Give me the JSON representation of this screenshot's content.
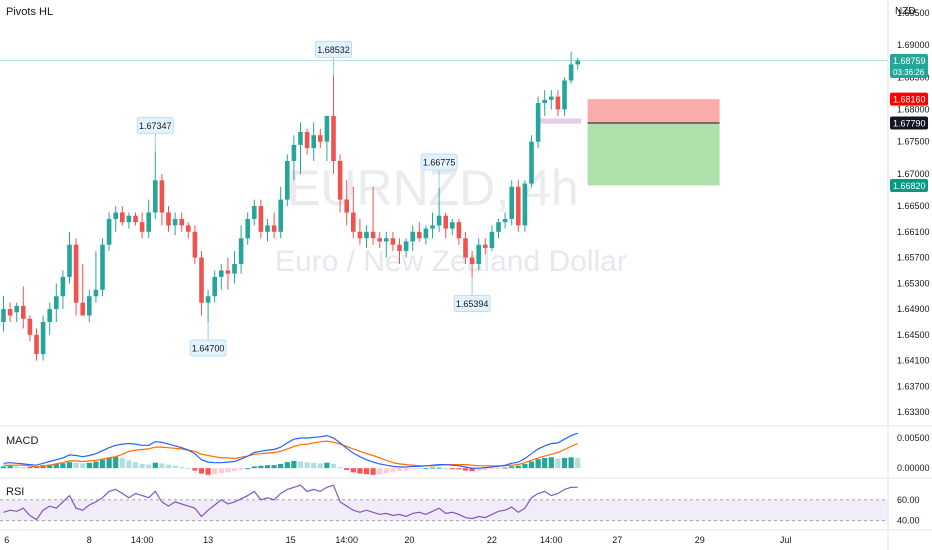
{
  "indicator_title": "Pivots HL",
  "currency": "NZD",
  "watermark": {
    "symbol": "EURNZD, 4h",
    "name": "Euro / New Zealand Dollar"
  },
  "price_tags": {
    "last": "1.68759",
    "countdown": "03:36:26",
    "stop": "1.68160",
    "entry": "1.67790",
    "target": "1.66820"
  },
  "colors": {
    "up": "#26a69a",
    "down": "#ef5350",
    "stop_zone": "#f9a3a3",
    "target_zone": "#a5dda0",
    "pivot_label_bg": "#e3f2fd",
    "macd_line": "#2962ff",
    "signal_line": "#ff6d00",
    "rsi_line": "#7e57c2",
    "rsi_band": "#ede7f6"
  },
  "chart_data": {
    "type": "candlestick",
    "y_axis": {
      "min": 1.631,
      "max": 1.697,
      "ticks": [
        "1.69500",
        "1.69000",
        "1.68500",
        "1.68000",
        "1.67500",
        "1.67000",
        "1.66500",
        "1.66100",
        "1.65700",
        "1.65300",
        "1.64900",
        "1.64500",
        "1.64100",
        "1.63700",
        "1.63300"
      ]
    },
    "x_axis": {
      "ticks": [
        {
          "label": "6",
          "i": 0.5
        },
        {
          "label": "8",
          "i": 13
        },
        {
          "label": "14:00",
          "i": 21
        },
        {
          "label": "13",
          "i": 31
        },
        {
          "label": "15",
          "i": 43.5
        },
        {
          "label": "14:00",
          "i": 52
        },
        {
          "label": "20",
          "i": 61.5
        },
        {
          "label": "22",
          "i": 74
        },
        {
          "label": "14:00",
          "i": 83
        },
        {
          "label": "27",
          "i": 93
        },
        {
          "label": "29",
          "i": 105.5
        },
        {
          "label": "Jul",
          "i": 118.5
        }
      ]
    },
    "candles": [
      {
        "o": 1.647,
        "h": 1.651,
        "l": 1.6455,
        "c": 1.649
      },
      {
        "o": 1.649,
        "h": 1.65,
        "l": 1.647,
        "c": 1.648
      },
      {
        "o": 1.6485,
        "h": 1.65,
        "l": 1.647,
        "c": 1.6495
      },
      {
        "o": 1.6495,
        "h": 1.6525,
        "l": 1.646,
        "c": 1.6475
      },
      {
        "o": 1.6475,
        "h": 1.648,
        "l": 1.644,
        "c": 1.645
      },
      {
        "o": 1.645,
        "h": 1.646,
        "l": 1.641,
        "c": 1.642
      },
      {
        "o": 1.642,
        "h": 1.648,
        "l": 1.641,
        "c": 1.647
      },
      {
        "o": 1.647,
        "h": 1.65,
        "l": 1.645,
        "c": 1.649
      },
      {
        "o": 1.649,
        "h": 1.653,
        "l": 1.647,
        "c": 1.651
      },
      {
        "o": 1.651,
        "h": 1.655,
        "l": 1.649,
        "c": 1.654
      },
      {
        "o": 1.654,
        "h": 1.661,
        "l": 1.653,
        "c": 1.659
      },
      {
        "o": 1.659,
        "h": 1.66,
        "l": 1.648,
        "c": 1.65
      },
      {
        "o": 1.65,
        "h": 1.656,
        "l": 1.648,
        "c": 1.648
      },
      {
        "o": 1.648,
        "h": 1.652,
        "l": 1.647,
        "c": 1.651
      },
      {
        "o": 1.651,
        "h": 1.658,
        "l": 1.65,
        "c": 1.652
      },
      {
        "o": 1.652,
        "h": 1.66,
        "l": 1.651,
        "c": 1.659
      },
      {
        "o": 1.659,
        "h": 1.664,
        "l": 1.658,
        "c": 1.663
      },
      {
        "o": 1.663,
        "h": 1.665,
        "l": 1.661,
        "c": 1.664
      },
      {
        "o": 1.664,
        "h": 1.665,
        "l": 1.662,
        "c": 1.6625
      },
      {
        "o": 1.6625,
        "h": 1.664,
        "l": 1.6615,
        "c": 1.6635
      },
      {
        "o": 1.6635,
        "h": 1.664,
        "l": 1.662,
        "c": 1.6625
      },
      {
        "o": 1.6625,
        "h": 1.664,
        "l": 1.66,
        "c": 1.661
      },
      {
        "o": 1.661,
        "h": 1.666,
        "l": 1.66,
        "c": 1.664
      },
      {
        "o": 1.664,
        "h": 1.6735,
        "l": 1.663,
        "c": 1.669
      },
      {
        "o": 1.669,
        "h": 1.67,
        "l": 1.662,
        "c": 1.664
      },
      {
        "o": 1.664,
        "h": 1.665,
        "l": 1.661,
        "c": 1.662
      },
      {
        "o": 1.662,
        "h": 1.664,
        "l": 1.6605,
        "c": 1.663
      },
      {
        "o": 1.663,
        "h": 1.664,
        "l": 1.661,
        "c": 1.662
      },
      {
        "o": 1.662,
        "h": 1.6625,
        "l": 1.66,
        "c": 1.661
      },
      {
        "o": 1.661,
        "h": 1.662,
        "l": 1.656,
        "c": 1.657
      },
      {
        "o": 1.657,
        "h": 1.658,
        "l": 1.648,
        "c": 1.65
      },
      {
        "o": 1.65,
        "h": 1.652,
        "l": 1.647,
        "c": 1.651
      },
      {
        "o": 1.651,
        "h": 1.655,
        "l": 1.65,
        "c": 1.654
      },
      {
        "o": 1.654,
        "h": 1.656,
        "l": 1.652,
        "c": 1.655
      },
      {
        "o": 1.655,
        "h": 1.657,
        "l": 1.652,
        "c": 1.6545
      },
      {
        "o": 1.6545,
        "h": 1.658,
        "l": 1.653,
        "c": 1.656
      },
      {
        "o": 1.656,
        "h": 1.662,
        "l": 1.6545,
        "c": 1.66
      },
      {
        "o": 1.66,
        "h": 1.664,
        "l": 1.659,
        "c": 1.663
      },
      {
        "o": 1.663,
        "h": 1.666,
        "l": 1.662,
        "c": 1.665
      },
      {
        "o": 1.665,
        "h": 1.666,
        "l": 1.66,
        "c": 1.661
      },
      {
        "o": 1.661,
        "h": 1.663,
        "l": 1.6595,
        "c": 1.662
      },
      {
        "o": 1.662,
        "h": 1.664,
        "l": 1.66,
        "c": 1.661
      },
      {
        "o": 1.661,
        "h": 1.668,
        "l": 1.66,
        "c": 1.666
      },
      {
        "o": 1.666,
        "h": 1.673,
        "l": 1.665,
        "c": 1.672
      },
      {
        "o": 1.672,
        "h": 1.676,
        "l": 1.669,
        "c": 1.6745
      },
      {
        "o": 1.6745,
        "h": 1.678,
        "l": 1.67,
        "c": 1.6765
      },
      {
        "o": 1.6765,
        "h": 1.677,
        "l": 1.673,
        "c": 1.674
      },
      {
        "o": 1.674,
        "h": 1.678,
        "l": 1.672,
        "c": 1.676
      },
      {
        "o": 1.676,
        "h": 1.677,
        "l": 1.674,
        "c": 1.675
      },
      {
        "o": 1.675,
        "h": 1.679,
        "l": 1.672,
        "c": 1.679
      },
      {
        "o": 1.679,
        "h": 1.6853,
        "l": 1.67,
        "c": 1.672
      },
      {
        "o": 1.672,
        "h": 1.673,
        "l": 1.664,
        "c": 1.666
      },
      {
        "o": 1.666,
        "h": 1.669,
        "l": 1.662,
        "c": 1.664
      },
      {
        "o": 1.664,
        "h": 1.668,
        "l": 1.66,
        "c": 1.661
      },
      {
        "o": 1.661,
        "h": 1.663,
        "l": 1.659,
        "c": 1.66
      },
      {
        "o": 1.66,
        "h": 1.662,
        "l": 1.6585,
        "c": 1.661
      },
      {
        "o": 1.661,
        "h": 1.668,
        "l": 1.659,
        "c": 1.66
      },
      {
        "o": 1.66,
        "h": 1.661,
        "l": 1.6585,
        "c": 1.6595
      },
      {
        "o": 1.6595,
        "h": 1.661,
        "l": 1.657,
        "c": 1.66
      },
      {
        "o": 1.66,
        "h": 1.661,
        "l": 1.658,
        "c": 1.659
      },
      {
        "o": 1.659,
        "h": 1.66,
        "l": 1.656,
        "c": 1.658
      },
      {
        "o": 1.658,
        "h": 1.66,
        "l": 1.657,
        "c": 1.6595
      },
      {
        "o": 1.6595,
        "h": 1.662,
        "l": 1.658,
        "c": 1.661
      },
      {
        "o": 1.661,
        "h": 1.6625,
        "l": 1.6595,
        "c": 1.66
      },
      {
        "o": 1.66,
        "h": 1.662,
        "l": 1.659,
        "c": 1.6615
      },
      {
        "o": 1.6615,
        "h": 1.664,
        "l": 1.66,
        "c": 1.662
      },
      {
        "o": 1.662,
        "h": 1.6678,
        "l": 1.661,
        "c": 1.6635
      },
      {
        "o": 1.6635,
        "h": 1.664,
        "l": 1.66,
        "c": 1.6615
      },
      {
        "o": 1.6615,
        "h": 1.663,
        "l": 1.6605,
        "c": 1.6625
      },
      {
        "o": 1.6625,
        "h": 1.663,
        "l": 1.659,
        "c": 1.66
      },
      {
        "o": 1.66,
        "h": 1.661,
        "l": 1.656,
        "c": 1.657
      },
      {
        "o": 1.657,
        "h": 1.658,
        "l": 1.6539,
        "c": 1.656
      },
      {
        "o": 1.656,
        "h": 1.66,
        "l": 1.655,
        "c": 1.659
      },
      {
        "o": 1.659,
        "h": 1.66,
        "l": 1.6575,
        "c": 1.6585
      },
      {
        "o": 1.6585,
        "h": 1.662,
        "l": 1.658,
        "c": 1.661
      },
      {
        "o": 1.661,
        "h": 1.663,
        "l": 1.66,
        "c": 1.6625
      },
      {
        "o": 1.6625,
        "h": 1.664,
        "l": 1.6615,
        "c": 1.663
      },
      {
        "o": 1.663,
        "h": 1.669,
        "l": 1.662,
        "c": 1.668
      },
      {
        "o": 1.668,
        "h": 1.669,
        "l": 1.661,
        "c": 1.662
      },
      {
        "o": 1.662,
        "h": 1.669,
        "l": 1.661,
        "c": 1.6685
      },
      {
        "o": 1.6685,
        "h": 1.676,
        "l": 1.668,
        "c": 1.675
      },
      {
        "o": 1.675,
        "h": 1.682,
        "l": 1.674,
        "c": 1.681
      },
      {
        "o": 1.681,
        "h": 1.683,
        "l": 1.679,
        "c": 1.6815
      },
      {
        "o": 1.6815,
        "h": 1.683,
        "l": 1.68,
        "c": 1.682
      },
      {
        "o": 1.682,
        "h": 1.683,
        "l": 1.679,
        "c": 1.68
      },
      {
        "o": 1.68,
        "h": 1.685,
        "l": 1.679,
        "c": 1.6845
      },
      {
        "o": 1.6845,
        "h": 1.689,
        "l": 1.684,
        "c": 1.687
      },
      {
        "o": 1.687,
        "h": 1.688,
        "l": 1.6862,
        "c": 1.6876
      }
    ],
    "pivot_labels": [
      {
        "text": "1.67347",
        "i": 23,
        "kind": "high",
        "price": 1.6735
      },
      {
        "text": "1.64700",
        "i": 31,
        "kind": "low",
        "price": 1.647
      },
      {
        "text": "1.68532",
        "i": 50,
        "kind": "high",
        "price": 1.6853
      },
      {
        "text": "1.66775",
        "i": 66,
        "kind": "high",
        "price": 1.6678
      },
      {
        "text": "1.65394",
        "i": 71,
        "kind": "low",
        "price": 1.6539
      }
    ],
    "position": {
      "entry": 1.6779,
      "stop": 1.6816,
      "target": 1.6682,
      "start_i": 88.5,
      "end_i": 108.5
    },
    "marker_zone": {
      "from": 1.6778,
      "to": 1.6786,
      "start_i": 81,
      "end_i": 87.5
    },
    "macd": {
      "label": "MACD",
      "ticks": [
        "0.00500",
        "0.00000"
      ],
      "range": [
        -0.0013,
        0.0065
      ],
      "hist": [
        0.0003,
        0.0004,
        0.0003,
        0.0002,
        0.0002,
        0.0003,
        0.0005,
        0.0006,
        0.0007,
        0.0008,
        0.001,
        0.0009,
        0.0008,
        0.0009,
        0.0011,
        0.0014,
        0.0017,
        0.0019,
        0.0017,
        0.0013,
        0.001,
        0.0007,
        0.0006,
        0.0009,
        0.0008,
        0.0006,
        0.0004,
        0.0002,
        0.0,
        -0.0004,
        -0.0009,
        -0.0011,
        -0.001,
        -0.0008,
        -0.0007,
        -0.0005,
        -0.0003,
        0.0,
        0.0003,
        0.0004,
        0.0005,
        0.0005,
        0.0007,
        0.001,
        0.0012,
        0.0011,
        0.001,
        0.0009,
        0.0008,
        0.0009,
        0.0007,
        0.0002,
        -0.0003,
        -0.0007,
        -0.0009,
        -0.001,
        -0.0011,
        -0.001,
        -0.0008,
        -0.0006,
        -0.0005,
        -0.0004,
        -0.0002,
        -0.0001,
        0.0,
        0.0001,
        0.0001,
        0.0,
        -0.0001,
        -0.0002,
        -0.0004,
        -0.0005,
        -0.0004,
        -0.0003,
        -0.0002,
        -0.0001,
        0.0001,
        0.0003,
        0.0004,
        0.0007,
        0.0011,
        0.0015,
        0.0017,
        0.0018,
        0.0016,
        0.0017,
        0.0018,
        0.0017
      ],
      "macd": [
        0.0008,
        0.0009,
        0.0008,
        0.0007,
        0.0006,
        0.0005,
        0.0008,
        0.0011,
        0.0014,
        0.0017,
        0.0022,
        0.0021,
        0.0019,
        0.0021,
        0.0024,
        0.0029,
        0.0034,
        0.0038,
        0.004,
        0.0041,
        0.004,
        0.0038,
        0.0038,
        0.0044,
        0.0043,
        0.004,
        0.0037,
        0.0034,
        0.003,
        0.0024,
        0.0014,
        0.001,
        0.0009,
        0.0009,
        0.001,
        0.0011,
        0.0015,
        0.002,
        0.0026,
        0.0028,
        0.003,
        0.0031,
        0.0035,
        0.0042,
        0.0048,
        0.005,
        0.005,
        0.0051,
        0.0052,
        0.0054,
        0.005,
        0.0042,
        0.0033,
        0.0025,
        0.0019,
        0.0014,
        0.001,
        0.0007,
        0.0005,
        0.0003,
        0.0002,
        0.0002,
        0.0003,
        0.0003,
        0.0004,
        0.0005,
        0.0006,
        0.0006,
        0.0005,
        0.0004,
        0.0002,
        0.0,
        0.0,
        0.0001,
        0.0002,
        0.0003,
        0.0005,
        0.0008,
        0.001,
        0.0016,
        0.0024,
        0.0032,
        0.0037,
        0.0041,
        0.0042,
        0.0048,
        0.0054,
        0.0058
      ],
      "signal": [
        0.0005,
        0.0005,
        0.0005,
        0.0005,
        0.0004,
        0.0002,
        0.0003,
        0.0005,
        0.0007,
        0.0009,
        0.0012,
        0.0012,
        0.0011,
        0.0012,
        0.0013,
        0.0015,
        0.0017,
        0.0019,
        0.0023,
        0.0028,
        0.003,
        0.0031,
        0.0032,
        0.0035,
        0.0035,
        0.0034,
        0.0033,
        0.0032,
        0.003,
        0.0028,
        0.0023,
        0.0021,
        0.0019,
        0.0017,
        0.0017,
        0.0016,
        0.0018,
        0.002,
        0.0023,
        0.0024,
        0.0025,
        0.0026,
        0.0028,
        0.0032,
        0.0036,
        0.0039,
        0.004,
        0.0042,
        0.0044,
        0.0045,
        0.0043,
        0.004,
        0.0036,
        0.0032,
        0.0028,
        0.0024,
        0.0021,
        0.0017,
        0.0013,
        0.0009,
        0.0007,
        0.0006,
        0.0005,
        0.0004,
        0.0004,
        0.0004,
        0.0005,
        0.0006,
        0.0006,
        0.0006,
        0.0006,
        0.0005,
        0.0004,
        0.0004,
        0.0004,
        0.0004,
        0.0004,
        0.0005,
        0.0006,
        0.0009,
        0.0013,
        0.0017,
        0.002,
        0.0023,
        0.0026,
        0.0031,
        0.0036,
        0.0041
      ]
    },
    "rsi": {
      "label": "RSI",
      "ticks": [
        "60.00",
        "40.00"
      ],
      "band": [
        40,
        60
      ],
      "range": [
        33,
        78
      ],
      "values": [
        48,
        50,
        49,
        52,
        45,
        41,
        50,
        54,
        52,
        58,
        64,
        52,
        50,
        55,
        58,
        62,
        68,
        70,
        66,
        62,
        66,
        64,
        62,
        68,
        58,
        54,
        58,
        56,
        54,
        52,
        44,
        50,
        55,
        60,
        56,
        58,
        61,
        64,
        68,
        60,
        62,
        60,
        66,
        70,
        72,
        74,
        68,
        70,
        68,
        72,
        74,
        58,
        54,
        50,
        48,
        50,
        48,
        46,
        47,
        45,
        46,
        44,
        47,
        48,
        46,
        49,
        52,
        47,
        48,
        46,
        43,
        42,
        44,
        43,
        46,
        49,
        50,
        53,
        48,
        52,
        62,
        66,
        68,
        64,
        66,
        70,
        72,
        72
      ]
    }
  }
}
